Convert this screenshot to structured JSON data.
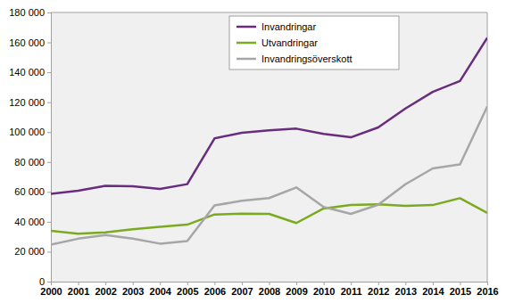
{
  "chart_data": {
    "type": "line",
    "categories": [
      "2000",
      "2001",
      "2002",
      "2003",
      "2004",
      "2005",
      "2006",
      "2007",
      "2008",
      "2009",
      "2010",
      "2011",
      "2012",
      "2013",
      "2014",
      "2015",
      "2016"
    ],
    "series": [
      {
        "name": "Invandringar",
        "color": "#6a2c7e",
        "values": [
          58700,
          60800,
          64100,
          63800,
          62000,
          65200,
          95800,
          99500,
          101200,
          102300,
          98800,
          96500,
          103100,
          115800,
          126900,
          134200,
          163000
        ]
      },
      {
        "name": "Utvandringar",
        "color": "#7aab1e",
        "values": [
          34000,
          32100,
          33000,
          35000,
          36600,
          38100,
          44900,
          45400,
          45300,
          39200,
          48900,
          51200,
          51700,
          50700,
          51200,
          55800,
          45900
        ]
      },
      {
        "name": "Invandringsöverskott",
        "color": "#a6a6a6",
        "values": [
          24700,
          28700,
          31100,
          28800,
          25400,
          27100,
          50900,
          54100,
          55900,
          63000,
          49900,
          45300,
          51400,
          65100,
          75700,
          78400,
          117100
        ]
      }
    ],
    "ylim": [
      0,
      180000
    ],
    "yticks": [
      0,
      {
        "value": 20000,
        "label": "20 000"
      },
      {
        "value": 40000,
        "label": "40 000"
      },
      {
        "value": 60000,
        "label": "60 000"
      },
      {
        "value": 80000,
        "label": "80 000"
      },
      {
        "value": 100000,
        "label": "100 000"
      },
      {
        "value": 120000,
        "label": "120 000"
      },
      {
        "value": 140000,
        "label": "140 000"
      },
      {
        "value": 160000,
        "label": "160 000"
      },
      {
        "value": 180000,
        "label": "180 000"
      }
    ],
    "grid": false,
    "legend": "top"
  }
}
